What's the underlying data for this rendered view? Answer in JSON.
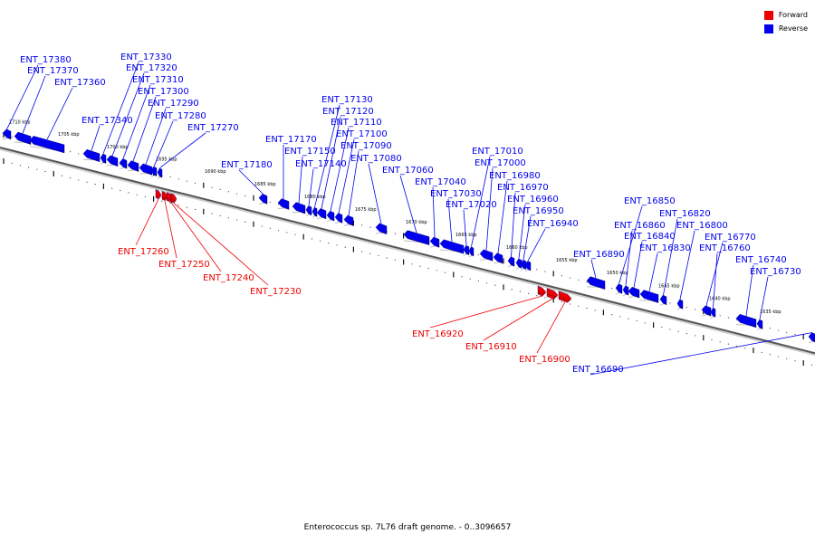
{
  "legend": {
    "forward_label": "Forward",
    "forward_color": "#ee0000",
    "reverse_label": "Reverse",
    "reverse_color": "#0000ee"
  },
  "caption": "Enterococcus sp. 7L76 draft genome. - 0..3096657",
  "scale_labels": [
    "1710 kbp",
    "1705 kbp",
    "1700 kbp",
    "1695 kbp",
    "1690 kbp",
    "1685 kbp",
    "1680 kbp",
    "1675 kbp",
    "1670 kbp",
    "1665 kbp",
    "1660 kbp",
    "1655 kbp",
    "1650 kbp",
    "1645 kbp",
    "1640 kbp",
    "1635 kbp"
  ],
  "genes_reverse": [
    "ENT_17380",
    "ENT_17370",
    "ENT_17360",
    "ENT_17340",
    "ENT_17330",
    "ENT_17320",
    "ENT_17310",
    "ENT_17300",
    "ENT_17290",
    "ENT_17280",
    "ENT_17270",
    "ENT_17180",
    "ENT_17170",
    "ENT_17150",
    "ENT_17140",
    "ENT_17130",
    "ENT_17120",
    "ENT_17110",
    "ENT_17100",
    "ENT_17090",
    "ENT_17080",
    "ENT_17060",
    "ENT_17040",
    "ENT_17030",
    "ENT_17020",
    "ENT_17010",
    "ENT_17000",
    "ENT_16980",
    "ENT_16970",
    "ENT_16960",
    "ENT_16950",
    "ENT_16940",
    "ENT_16890",
    "ENT_16850",
    "ENT_16860",
    "ENT_16840",
    "ENT_16830",
    "ENT_16820",
    "ENT_16800",
    "ENT_16770",
    "ENT_16760",
    "ENT_16740",
    "ENT_16730",
    "ENT_16690"
  ],
  "genes_forward": [
    "ENT_17260",
    "ENT_17250",
    "ENT_17240",
    "ENT_17230",
    "ENT_16920",
    "ENT_16910",
    "ENT_16900"
  ]
}
